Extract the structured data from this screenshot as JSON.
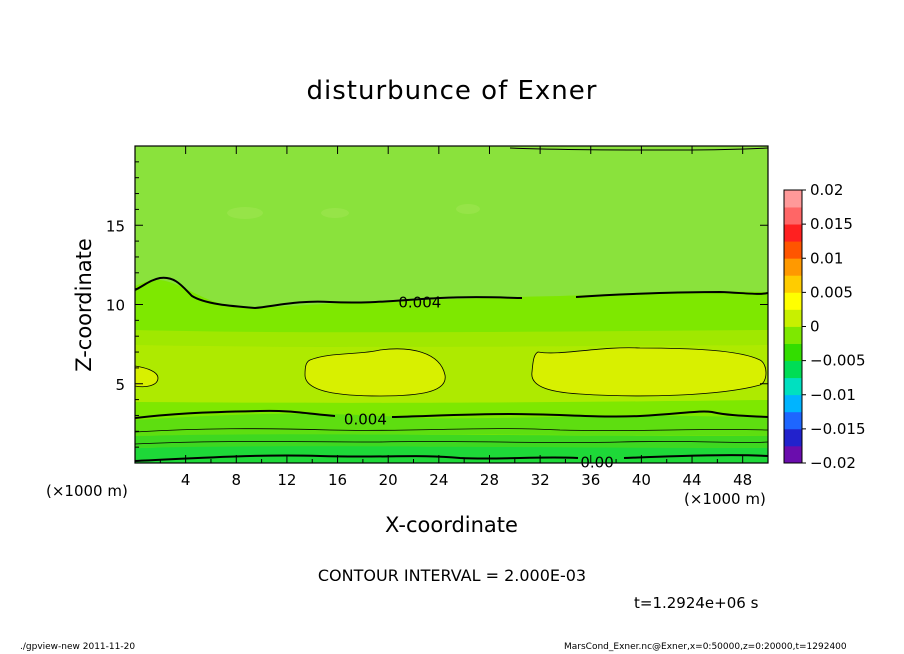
{
  "chart_data": {
    "type": "heatmap",
    "title": "disturbunce of Exner",
    "xlabel": "X-coordinate",
    "ylabel": "Z-coordinate",
    "x_unit_label_left": "(×1000 m)",
    "x_unit_label_right": "(×1000 m)",
    "xlim": [
      0,
      50
    ],
    "ylim": [
      0,
      20
    ],
    "x_ticks": [
      4,
      8,
      12,
      16,
      20,
      24,
      28,
      32,
      36,
      40,
      44,
      48
    ],
    "y_ticks": [
      5,
      10,
      15
    ],
    "colorbar": {
      "levels": [
        "0.02",
        "0.015",
        "0.01",
        "0.005",
        "0",
        "−0.005",
        "−0.01",
        "−0.015",
        "−0.02"
      ],
      "range": [
        -0.02,
        0.02
      ],
      "colors": [
        "#6a0dad",
        "#2222cc",
        "#1e66ff",
        "#00b4ff",
        "#00e0c0",
        "#00dd55",
        "#33dd00",
        "#7ee800",
        "#c8f000",
        "#ffff00",
        "#ffcc00",
        "#ff9900",
        "#ff5500",
        "#ff2020",
        "#ff6666",
        "#ff9999"
      ]
    },
    "contour_labels": [
      {
        "text": "0.004",
        "x": 22.5,
        "z": 10.2
      },
      {
        "text": "0.004",
        "x": 18.2,
        "z": 2.8
      },
      {
        "text": "0.00",
        "x": 36.5,
        "z": 0.1
      }
    ],
    "contour_interval": "CONTOUR INTERVAL = 2.000E-03",
    "time_label": "t=1.2924e+06 s",
    "footer_left": "./gpview-new  2011-11-20",
    "footer_right": "MarsCond_Exner.nc@Exner,x=0:50000,z=0:20000,t=1292400"
  }
}
